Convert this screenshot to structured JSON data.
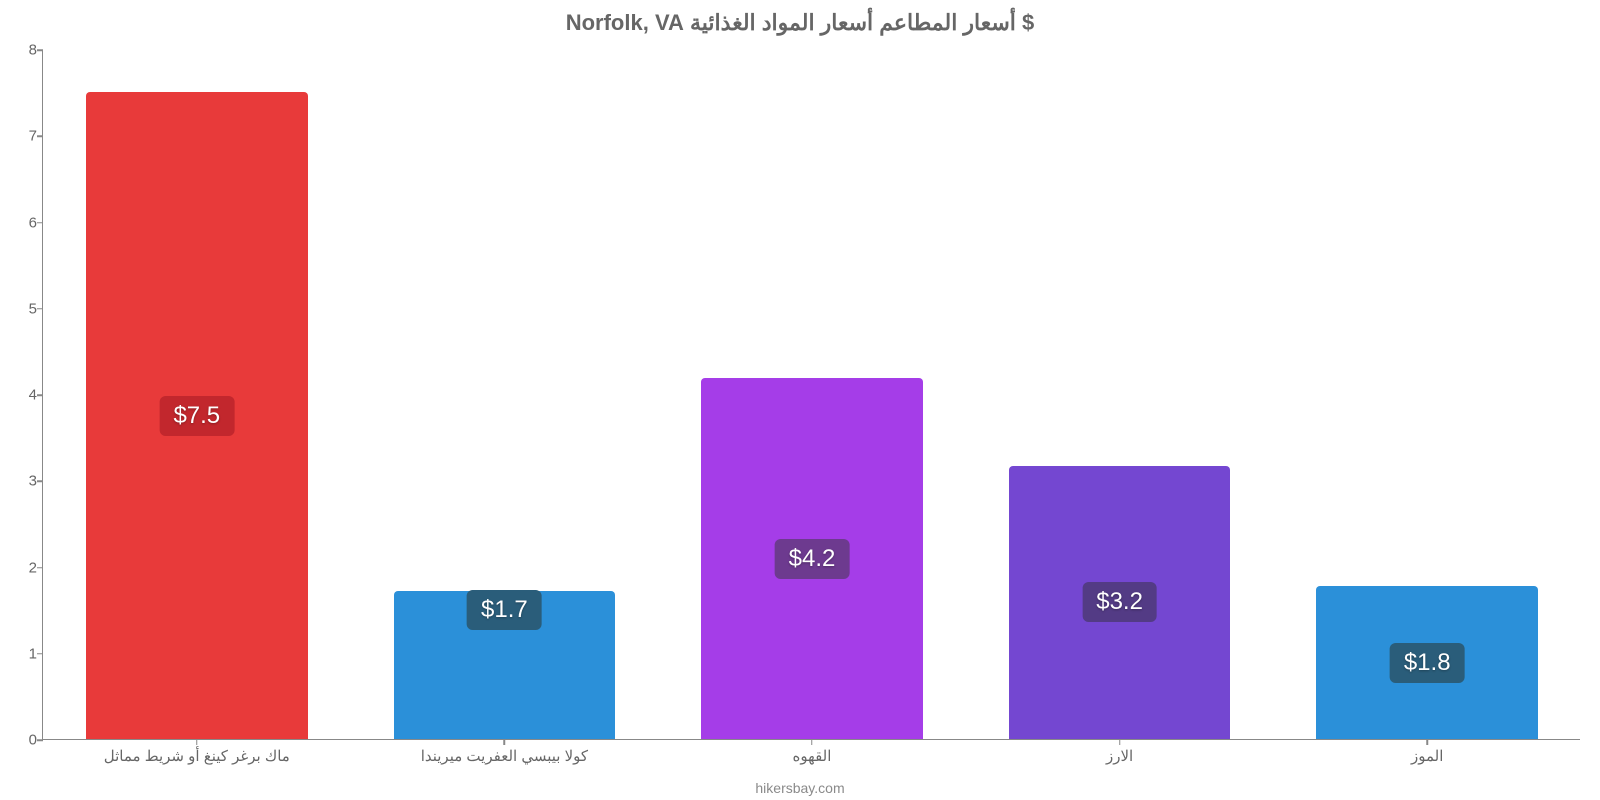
{
  "chart": {
    "type": "bar",
    "title": "$ أسعار المطاعم أسعار المواد الغذائية Norfolk, VA",
    "title_color": "#666666",
    "title_fontsize": 22,
    "background_color": "#ffffff",
    "axis_color": "#888888",
    "axis_width": 1.5,
    "label_color": "#666666",
    "label_fontsize": 15,
    "yaxis": {
      "min": 0,
      "max": 8,
      "tick_step": 1,
      "ticks": [
        0,
        1,
        2,
        3,
        4,
        5,
        6,
        7,
        8
      ]
    },
    "bars": [
      {
        "category": "ماك برغر كينغ أو شريط مماثل",
        "value": 7.5,
        "display": "$7.5",
        "bar_color": "#e83a3a",
        "badge_bg": "#c2272d"
      },
      {
        "category": "كولا بيبسي العفريت ميريندا",
        "value": 1.72,
        "display": "$1.7",
        "bar_color": "#2b90d9",
        "badge_bg": "#2a5d7a"
      },
      {
        "category": "القهوه",
        "value": 4.18,
        "display": "$4.2",
        "bar_color": "#a53de8",
        "badge_bg": "#6d3a8f"
      },
      {
        "category": "الارز",
        "value": 3.17,
        "display": "$3.2",
        "bar_color": "#7447d1",
        "badge_bg": "#533b85"
      },
      {
        "category": "الموز",
        "value": 1.77,
        "display": "$1.8",
        "bar_color": "#2b90d9",
        "badge_bg": "#2a5d7a"
      }
    ],
    "bar_width_ratio": 0.9,
    "value_fontsize": 24,
    "value_color": "#ffffff",
    "badge_radius": 6,
    "bar_radius": 4,
    "watermark": "hikersbay.com",
    "watermark_color": "#8a8a8a"
  }
}
